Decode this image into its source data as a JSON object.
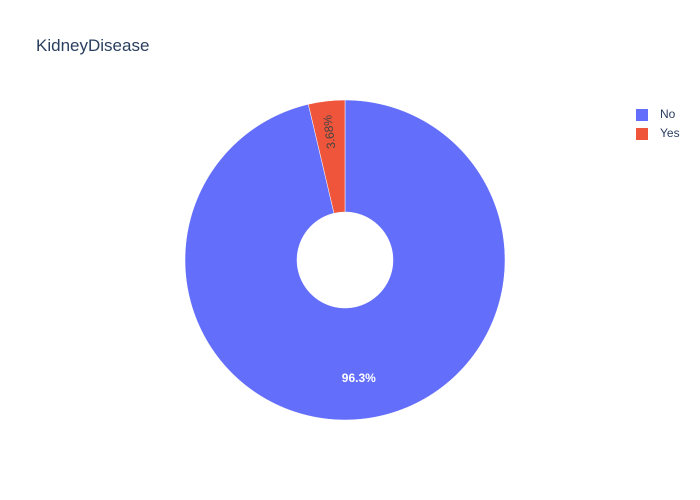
{
  "chart_data": {
    "type": "pie",
    "title": "KidneyDisease",
    "hole": true,
    "legend_position": "top-right",
    "slices": [
      {
        "label": "No",
        "value": 96.3,
        "text": "96.3%",
        "color": "#636efa",
        "text_color": "#ffffff"
      },
      {
        "label": "Yes",
        "value": 3.68,
        "text": "3.68%",
        "color": "#ef553b",
        "text_color": "#444444"
      }
    ]
  }
}
